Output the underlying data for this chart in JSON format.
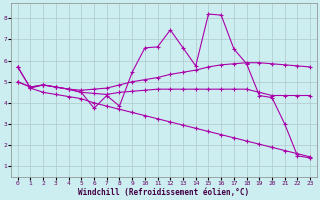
{
  "xlabel": "Windchill (Refroidissement éolien,°C)",
  "xlim": [
    -0.5,
    23.5
  ],
  "ylim": [
    0.5,
    8.7
  ],
  "xticks": [
    0,
    1,
    2,
    3,
    4,
    5,
    6,
    7,
    8,
    9,
    10,
    11,
    12,
    13,
    14,
    15,
    16,
    17,
    18,
    19,
    20,
    21,
    22,
    23
  ],
  "yticks": [
    1,
    2,
    3,
    4,
    5,
    6,
    7,
    8
  ],
  "bg_color": "#cceef0",
  "grid_color": "#b0c8cc",
  "line_color": "#aa00aa",
  "line1_x": [
    0,
    1,
    2,
    3,
    4,
    5,
    6,
    7,
    8,
    9,
    10,
    11,
    12,
    13,
    14,
    15,
    16,
    17,
    18,
    19,
    20,
    21,
    22,
    23
  ],
  "line1_y": [
    5.7,
    4.7,
    4.85,
    4.75,
    4.65,
    4.5,
    3.75,
    4.35,
    3.85,
    5.45,
    6.6,
    6.65,
    7.45,
    6.6,
    5.75,
    8.2,
    8.15,
    6.55,
    5.85,
    4.35,
    4.25,
    3.0,
    1.5,
    1.4
  ],
  "line2_x": [
    0,
    1,
    2,
    3,
    4,
    5,
    6,
    7,
    8,
    9,
    10,
    11,
    12,
    13,
    14,
    15,
    16,
    17,
    18,
    19,
    20,
    21,
    22,
    23
  ],
  "line2_y": [
    5.0,
    4.75,
    4.85,
    4.75,
    4.65,
    4.6,
    4.65,
    4.7,
    4.85,
    5.0,
    5.1,
    5.2,
    5.35,
    5.45,
    5.55,
    5.7,
    5.8,
    5.85,
    5.9,
    5.9,
    5.85,
    5.8,
    5.75,
    5.7
  ],
  "line3_x": [
    0,
    1,
    2,
    3,
    4,
    5,
    6,
    7,
    8,
    9,
    10,
    11,
    12,
    13,
    14,
    15,
    16,
    17,
    18,
    19,
    20,
    21,
    22,
    23
  ],
  "line3_y": [
    5.0,
    4.75,
    4.85,
    4.75,
    4.65,
    4.5,
    4.45,
    4.4,
    4.5,
    4.55,
    4.6,
    4.65,
    4.65,
    4.65,
    4.65,
    4.65,
    4.65,
    4.65,
    4.65,
    4.5,
    4.35,
    4.35,
    4.35,
    4.35
  ],
  "line4_x": [
    0,
    1,
    2,
    3,
    4,
    5,
    6,
    7,
    8,
    9,
    10,
    11,
    12,
    13,
    14,
    15,
    16,
    17,
    18,
    19,
    20,
    21,
    22,
    23
  ],
  "line4_y": [
    5.7,
    4.7,
    4.5,
    4.4,
    4.3,
    4.2,
    4.0,
    3.85,
    3.7,
    3.55,
    3.4,
    3.25,
    3.1,
    2.95,
    2.8,
    2.65,
    2.5,
    2.35,
    2.2,
    2.05,
    1.9,
    1.75,
    1.6,
    1.45
  ]
}
